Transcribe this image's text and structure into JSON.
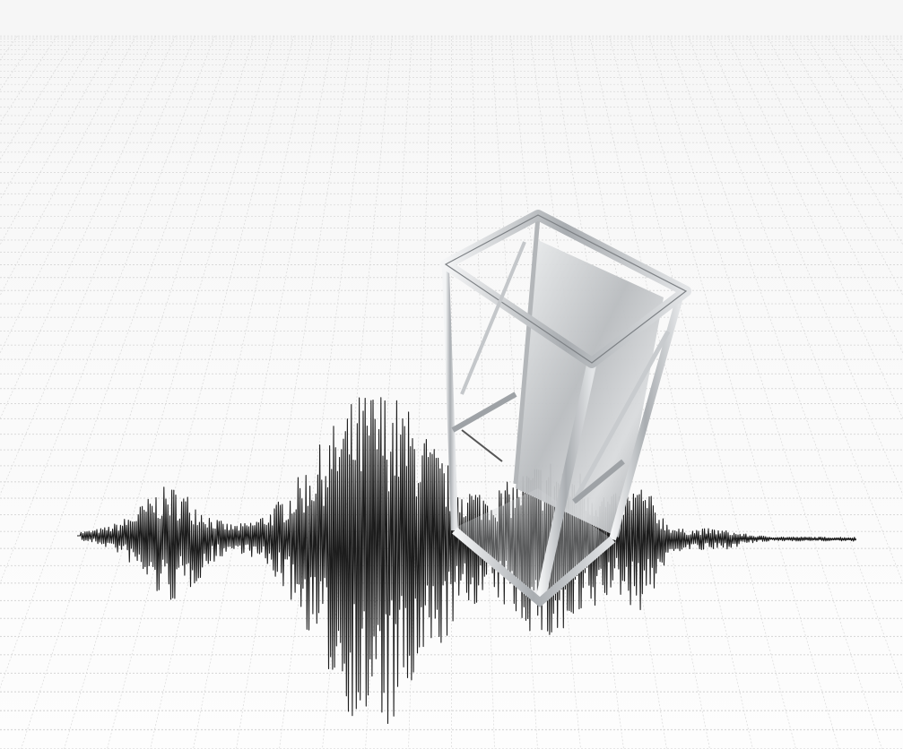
{
  "image": {
    "subject": "seismograph-trace-with-server-rack",
    "colors": {
      "background": "#fbfbfb",
      "grid": "#d9d9d9",
      "trace": "#1c1c1c",
      "frame_light": "#e4e6e8",
      "frame_dark": "#8a8d91",
      "panel_light": "#d6d8da",
      "panel_dark": "#9a9ea2"
    }
  }
}
